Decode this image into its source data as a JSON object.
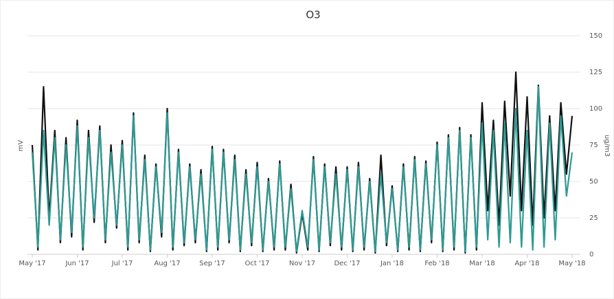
{
  "chart_data": {
    "type": "line",
    "title": "O3",
    "y_label": "mV",
    "y2_label": "ug/m3",
    "ylim": [
      0,
      150
    ],
    "yticks": [
      0,
      25,
      50,
      75,
      100,
      125,
      150
    ],
    "grid": true,
    "xlim": [
      0,
      96
    ],
    "xticks": [
      {
        "value": 0,
        "label": "May '17"
      },
      {
        "value": 8,
        "label": "Jun '17"
      },
      {
        "value": 16,
        "label": "Jul '17"
      },
      {
        "value": 24,
        "label": "Aug '17"
      },
      {
        "value": 32,
        "label": "Sep '17"
      },
      {
        "value": 40,
        "label": "Oct '17"
      },
      {
        "value": 48,
        "label": "Nov '17"
      },
      {
        "value": 56,
        "label": "Dec '17"
      },
      {
        "value": 64,
        "label": "Jan '18"
      },
      {
        "value": 72,
        "label": "Feb '18"
      },
      {
        "value": 80,
        "label": "Mar '18"
      },
      {
        "value": 88,
        "label": "Apr '18"
      },
      {
        "value": 96,
        "label": "May '18"
      }
    ],
    "series": [
      {
        "color": "#111111",
        "values": [
          75,
          3,
          115,
          25,
          85,
          8,
          80,
          12,
          92,
          3,
          85,
          22,
          88,
          8,
          75,
          18,
          78,
          3,
          97,
          8,
          68,
          2,
          62,
          12,
          100,
          3,
          72,
          6,
          62,
          8,
          58,
          2,
          74,
          3,
          72,
          8,
          68,
          2,
          58,
          6,
          63,
          2,
          52,
          3,
          64,
          3,
          48,
          1,
          28,
          3,
          67,
          2,
          62,
          6,
          60,
          3,
          60,
          2,
          63,
          3,
          52,
          1,
          68,
          6,
          47,
          2,
          62,
          3,
          67,
          2,
          64,
          8,
          77,
          2,
          82,
          3,
          87,
          1,
          82,
          3,
          104,
          30,
          92,
          20,
          105,
          40,
          125,
          30,
          108,
          20,
          116,
          25,
          95,
          30,
          104,
          55,
          95
        ]
      },
      {
        "color": "#2e9a94",
        "values": [
          70,
          5,
          85,
          20,
          80,
          10,
          75,
          15,
          88,
          5,
          80,
          25,
          85,
          10,
          70,
          20,
          75,
          5,
          95,
          10,
          65,
          3,
          60,
          15,
          97,
          5,
          70,
          8,
          60,
          10,
          55,
          3,
          72,
          5,
          70,
          10,
          65,
          3,
          55,
          8,
          60,
          3,
          50,
          5,
          62,
          5,
          45,
          2,
          30,
          5,
          65,
          3,
          60,
          8,
          55,
          5,
          58,
          3,
          60,
          5,
          50,
          2,
          55,
          8,
          45,
          3,
          60,
          5,
          65,
          3,
          62,
          10,
          75,
          3,
          80,
          5,
          85,
          2,
          80,
          5,
          90,
          10,
          85,
          5,
          90,
          8,
          100,
          5,
          85,
          3,
          115,
          5,
          90,
          10,
          95,
          40,
          70
        ]
      }
    ]
  }
}
